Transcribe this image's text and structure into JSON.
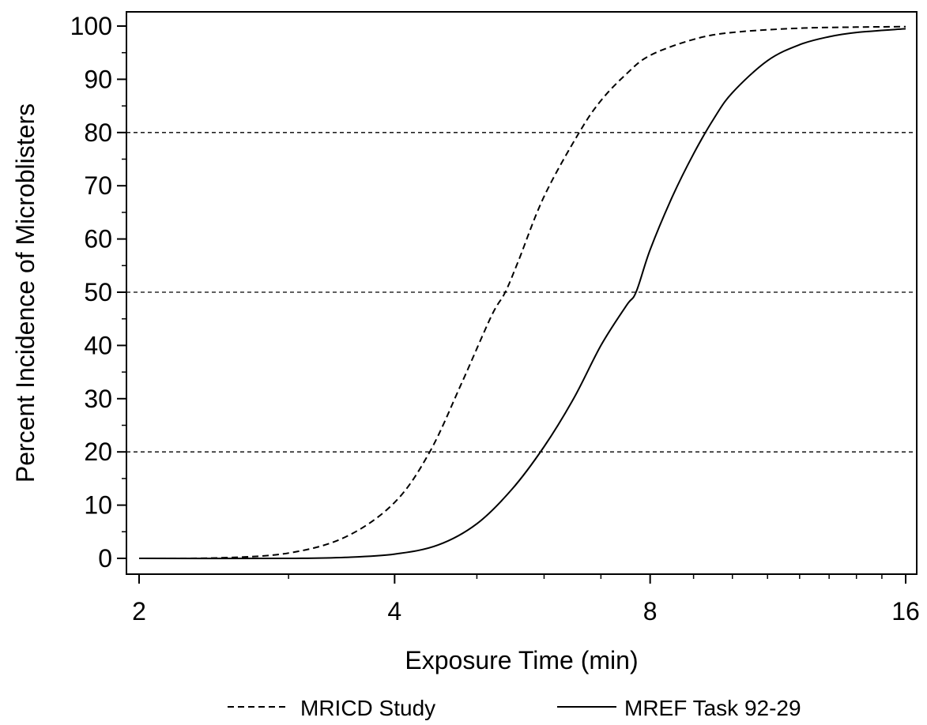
{
  "chart_data": {
    "type": "line",
    "title": "",
    "xlabel": "Exposure Time (min)",
    "ylabel": "Percent Incidence of Microblisters",
    "x_scale": "log2",
    "xlim": [
      2,
      16
    ],
    "ylim": [
      0,
      100
    ],
    "x_ticks": [
      2,
      4,
      8,
      16
    ],
    "y_ticks": [
      0,
      10,
      20,
      30,
      40,
      50,
      60,
      70,
      80,
      90,
      100
    ],
    "reference_lines_y": [
      20,
      50,
      80
    ],
    "grid": false,
    "legend": "bottom",
    "series": [
      {
        "name": "MRICD Study",
        "style": "dashed",
        "x": [
          2.0,
          2.5,
          3.0,
          3.5,
          4.0,
          4.4,
          4.8,
          5.2,
          5.4,
          5.6,
          6.0,
          6.6,
          7.0,
          7.5,
          8.0,
          9.0,
          10.0,
          12.0,
          14.0,
          16.0
        ],
        "y": [
          0.0,
          0.1,
          1.0,
          4.0,
          10.5,
          20.0,
          33.0,
          45.5,
          50.0,
          56.0,
          68.0,
          80.0,
          86.0,
          91.0,
          94.5,
          97.5,
          98.8,
          99.6,
          99.8,
          99.9
        ]
      },
      {
        "name": "MREF Task 92-29",
        "style": "solid",
        "x": [
          2.0,
          3.0,
          3.5,
          4.0,
          4.5,
          5.0,
          5.5,
          6.0,
          6.5,
          7.0,
          7.5,
          7.7,
          8.0,
          8.5,
          9.0,
          9.5,
          10.0,
          11.0,
          12.0,
          13.0,
          14.0,
          16.0
        ],
        "y": [
          0.0,
          0.0,
          0.2,
          0.8,
          2.5,
          6.5,
          13.0,
          21.0,
          30.0,
          40.0,
          47.5,
          50.0,
          58.0,
          68.0,
          76.0,
          82.5,
          87.5,
          93.5,
          96.5,
          98.0,
          98.8,
          99.5
        ]
      }
    ]
  }
}
